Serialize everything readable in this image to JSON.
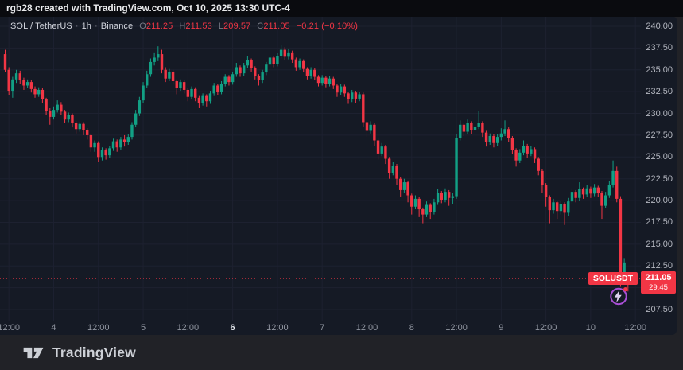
{
  "attribution": {
    "text": "rgb28 created with TradingView.com, Oct 10, 2025 13:30 UTC-4"
  },
  "legend": {
    "symbol": "SOL / TetherUS",
    "separator": "·",
    "interval": "1h",
    "exchange": "Binance",
    "change": "−0.21 (−0.10%)"
  },
  "footer": {
    "brand": "TradingView"
  },
  "colors": {
    "up": "#12a085",
    "down": "#f23645",
    "grid": "#1d2130",
    "pane_bg": "#151a25",
    "axis_text": "#b4b7c0",
    "dim_text": "#9196a1",
    "boost_ring": "#a94fd6"
  },
  "chart_data": {
    "type": "candlestick",
    "title": "SOL / TetherUS · 1h · Binance",
    "symbol": "SOLUSDT",
    "interval": "1h",
    "exchange": "Binance",
    "ohlc_legend": [
      {
        "label": "O",
        "value": "211.25"
      },
      {
        "label": "H",
        "value": "211.53"
      },
      {
        "label": "L",
        "value": "209.57"
      },
      {
        "label": "C",
        "value": "211.05"
      }
    ],
    "change": "−0.21 (−0.10%)",
    "y_axis": {
      "max": 240.0,
      "min": 207.5,
      "step": 2.5,
      "labels": [
        "240.00",
        "237.50",
        "235.00",
        "232.50",
        "230.00",
        "227.50",
        "225.00",
        "222.50",
        "220.00",
        "217.50",
        "215.00",
        "212.50",
        "207.50"
      ]
    },
    "x_ticks": [
      {
        "index": 1,
        "label": "12:00"
      },
      {
        "index": 13,
        "label": "4"
      },
      {
        "index": 25,
        "label": "12:00"
      },
      {
        "index": 37,
        "label": "5"
      },
      {
        "index": 49,
        "label": "12:00"
      },
      {
        "index": 61,
        "label": "6",
        "bold": true
      },
      {
        "index": 73,
        "label": "12:00"
      },
      {
        "index": 85,
        "label": "7"
      },
      {
        "index": 97,
        "label": "12:00"
      },
      {
        "index": 109,
        "label": "8"
      },
      {
        "index": 121,
        "label": "12:00"
      },
      {
        "index": 133,
        "label": "9"
      },
      {
        "index": 145,
        "label": "12:00"
      },
      {
        "index": 157,
        "label": "10"
      },
      {
        "index": 169,
        "label": "12:00"
      }
    ],
    "price_line": {
      "price": 211.05,
      "price_label": "211.05",
      "countdown": "29:45",
      "symbol_label": "SOLUSDT"
    },
    "candles": [
      [
        236.8,
        237.3,
        234.7,
        235.0
      ],
      [
        235.0,
        235.3,
        232.1,
        232.6
      ],
      [
        232.6,
        234.2,
        231.8,
        233.9
      ],
      [
        233.9,
        235.0,
        233.5,
        234.6
      ],
      [
        234.6,
        234.9,
        233.4,
        233.8
      ],
      [
        233.8,
        234.1,
        232.7,
        233.2
      ],
      [
        233.2,
        233.9,
        232.9,
        233.6
      ],
      [
        233.6,
        233.8,
        232.4,
        232.8
      ],
      [
        232.8,
        233.1,
        231.8,
        232.2
      ],
      [
        232.2,
        233.0,
        231.9,
        232.7
      ],
      [
        232.7,
        232.9,
        231.2,
        231.6
      ],
      [
        231.6,
        231.8,
        229.8,
        230.3
      ],
      [
        230.3,
        230.6,
        228.7,
        229.6
      ],
      [
        229.6,
        230.8,
        229.3,
        230.4
      ],
      [
        230.4,
        231.5,
        230.1,
        231.0
      ],
      [
        231.0,
        231.3,
        229.8,
        230.2
      ],
      [
        230.2,
        230.4,
        228.9,
        229.3
      ],
      [
        229.3,
        230.1,
        229.0,
        229.8
      ],
      [
        229.8,
        230.0,
        228.4,
        228.9
      ],
      [
        228.9,
        229.1,
        227.7,
        228.2
      ],
      [
        228.2,
        229.0,
        227.9,
        228.8
      ],
      [
        228.8,
        229.0,
        227.5,
        228.1
      ],
      [
        228.1,
        228.3,
        227.0,
        227.5
      ],
      [
        227.5,
        227.7,
        225.6,
        226.1
      ],
      [
        226.1,
        226.9,
        225.6,
        226.6
      ],
      [
        226.6,
        226.8,
        224.4,
        225.0
      ],
      [
        225.0,
        226.1,
        224.6,
        225.8
      ],
      [
        225.8,
        226.0,
        224.7,
        225.2
      ],
      [
        225.2,
        226.3,
        224.9,
        226.0
      ],
      [
        226.0,
        227.1,
        225.7,
        226.8
      ],
      [
        226.8,
        227.0,
        225.6,
        226.1
      ],
      [
        226.1,
        227.3,
        225.8,
        227.0
      ],
      [
        227.0,
        227.5,
        226.2,
        226.7
      ],
      [
        226.7,
        227.6,
        226.4,
        227.3
      ],
      [
        227.3,
        229.0,
        227.0,
        228.7
      ],
      [
        228.7,
        230.4,
        228.4,
        230.0
      ],
      [
        230.0,
        231.9,
        229.7,
        231.5
      ],
      [
        231.5,
        233.6,
        231.2,
        233.2
      ],
      [
        233.2,
        234.9,
        232.9,
        234.5
      ],
      [
        234.5,
        236.3,
        234.2,
        235.9
      ],
      [
        235.9,
        237.0,
        235.5,
        236.4
      ],
      [
        236.4,
        237.7,
        236.0,
        236.8
      ],
      [
        236.8,
        237.3,
        234.6,
        235.0
      ],
      [
        235.0,
        235.3,
        233.6,
        234.0
      ],
      [
        234.0,
        235.1,
        233.7,
        234.8
      ],
      [
        234.8,
        235.0,
        233.3,
        233.7
      ],
      [
        233.7,
        233.9,
        232.2,
        232.9
      ],
      [
        232.9,
        233.9,
        232.6,
        233.6
      ],
      [
        233.6,
        233.8,
        232.3,
        232.7
      ],
      [
        232.7,
        232.9,
        231.4,
        231.9
      ],
      [
        231.9,
        233.1,
        231.6,
        232.8
      ],
      [
        232.8,
        233.0,
        231.4,
        231.8
      ],
      [
        231.8,
        232.0,
        230.6,
        231.2
      ],
      [
        231.2,
        232.3,
        230.9,
        232.0
      ],
      [
        232.0,
        232.2,
        230.8,
        231.4
      ],
      [
        231.4,
        232.6,
        231.1,
        232.3
      ],
      [
        232.3,
        233.5,
        232.0,
        233.2
      ],
      [
        233.2,
        233.4,
        232.1,
        232.5
      ],
      [
        232.5,
        233.7,
        232.2,
        233.4
      ],
      [
        233.4,
        234.5,
        233.1,
        234.2
      ],
      [
        234.2,
        234.4,
        233.2,
        233.6
      ],
      [
        233.6,
        234.8,
        233.3,
        234.5
      ],
      [
        234.5,
        235.8,
        234.2,
        235.3
      ],
      [
        235.3,
        235.5,
        234.2,
        234.6
      ],
      [
        234.6,
        235.8,
        234.3,
        235.5
      ],
      [
        235.5,
        236.6,
        235.2,
        236.1
      ],
      [
        236.1,
        236.3,
        234.8,
        235.2
      ],
      [
        235.2,
        235.4,
        233.9,
        234.3
      ],
      [
        234.3,
        234.5,
        233.2,
        233.8
      ],
      [
        233.8,
        235.0,
        233.5,
        234.7
      ],
      [
        234.7,
        235.9,
        234.4,
        235.6
      ],
      [
        235.6,
        236.7,
        235.3,
        236.4
      ],
      [
        236.4,
        236.6,
        235.3,
        235.7
      ],
      [
        235.7,
        236.9,
        235.4,
        236.6
      ],
      [
        236.6,
        237.9,
        236.3,
        237.3
      ],
      [
        237.3,
        237.6,
        236.1,
        236.5
      ],
      [
        236.5,
        237.4,
        236.2,
        237.0
      ],
      [
        237.0,
        237.2,
        235.8,
        236.2
      ],
      [
        236.2,
        236.4,
        234.9,
        235.3
      ],
      [
        235.3,
        236.3,
        235.0,
        236.0
      ],
      [
        236.0,
        236.2,
        234.7,
        235.1
      ],
      [
        235.1,
        235.3,
        233.9,
        234.3
      ],
      [
        234.3,
        235.3,
        234.0,
        235.0
      ],
      [
        235.0,
        235.2,
        233.8,
        234.2
      ],
      [
        234.2,
        234.4,
        233.1,
        233.5
      ],
      [
        233.5,
        234.4,
        233.2,
        234.1
      ],
      [
        234.1,
        234.3,
        233.0,
        233.4
      ],
      [
        233.4,
        234.3,
        233.1,
        234.0
      ],
      [
        234.0,
        234.2,
        232.8,
        233.2
      ],
      [
        233.2,
        233.4,
        231.9,
        232.4
      ],
      [
        232.4,
        233.4,
        232.1,
        233.1
      ],
      [
        233.1,
        233.3,
        231.9,
        232.3
      ],
      [
        232.3,
        232.5,
        231.1,
        231.6
      ],
      [
        231.6,
        232.7,
        231.3,
        232.4
      ],
      [
        232.4,
        232.6,
        231.2,
        231.7
      ],
      [
        231.7,
        232.5,
        231.4,
        232.2
      ],
      [
        232.2,
        232.4,
        228.5,
        229.0
      ],
      [
        229.0,
        229.2,
        227.3,
        228.0
      ],
      [
        228.0,
        229.1,
        227.7,
        228.7
      ],
      [
        228.7,
        228.9,
        226.3,
        226.9
      ],
      [
        226.9,
        227.1,
        224.7,
        225.4
      ],
      [
        225.4,
        226.6,
        225.1,
        226.2
      ],
      [
        226.2,
        226.4,
        224.2,
        224.8
      ],
      [
        224.8,
        225.0,
        222.5,
        223.2
      ],
      [
        223.2,
        224.4,
        222.9,
        224.0
      ],
      [
        224.0,
        224.2,
        221.8,
        222.5
      ],
      [
        222.5,
        222.7,
        220.4,
        221.2
      ],
      [
        221.2,
        222.5,
        220.9,
        222.1
      ],
      [
        222.1,
        222.3,
        219.8,
        220.6
      ],
      [
        220.6,
        220.8,
        218.4,
        219.3
      ],
      [
        219.3,
        220.6,
        219.0,
        220.2
      ],
      [
        220.2,
        220.4,
        218.1,
        219.0
      ],
      [
        219.0,
        219.2,
        217.4,
        218.4
      ],
      [
        218.4,
        219.9,
        218.1,
        219.5
      ],
      [
        219.5,
        219.7,
        217.9,
        218.7
      ],
      [
        218.7,
        220.2,
        218.4,
        219.8
      ],
      [
        219.8,
        221.3,
        219.5,
        220.9
      ],
      [
        220.9,
        221.1,
        219.7,
        220.1
      ],
      [
        220.1,
        221.4,
        219.8,
        221.0
      ],
      [
        221.0,
        221.2,
        219.4,
        220.3
      ],
      [
        220.3,
        220.9,
        219.6,
        220.5
      ],
      [
        220.5,
        227.6,
        220.2,
        227.2
      ],
      [
        227.2,
        229.2,
        226.9,
        228.7
      ],
      [
        228.7,
        228.9,
        227.4,
        227.9
      ],
      [
        227.9,
        229.3,
        227.6,
        228.9
      ],
      [
        228.9,
        229.1,
        227.6,
        228.1
      ],
      [
        228.1,
        228.9,
        227.7,
        228.5
      ],
      [
        228.5,
        230.3,
        228.2,
        228.9
      ],
      [
        228.9,
        229.1,
        227.3,
        227.8
      ],
      [
        227.8,
        228.0,
        226.2,
        226.7
      ],
      [
        226.7,
        227.7,
        226.4,
        227.4
      ],
      [
        227.4,
        227.6,
        226.1,
        226.6
      ],
      [
        226.6,
        227.6,
        226.3,
        227.3
      ],
      [
        227.3,
        228.3,
        226.9,
        227.7
      ],
      [
        227.7,
        229.2,
        227.4,
        228.2
      ],
      [
        228.2,
        228.4,
        226.7,
        227.2
      ],
      [
        227.2,
        227.4,
        225.3,
        225.8
      ],
      [
        225.8,
        226.0,
        223.9,
        224.6
      ],
      [
        224.6,
        225.9,
        224.3,
        225.5
      ],
      [
        225.5,
        226.9,
        225.2,
        226.3
      ],
      [
        226.3,
        226.5,
        224.9,
        225.4
      ],
      [
        225.4,
        226.3,
        225.1,
        225.9
      ],
      [
        225.9,
        226.1,
        224.3,
        224.8
      ],
      [
        224.8,
        225.0,
        222.9,
        223.4
      ],
      [
        223.4,
        223.6,
        220.9,
        221.8
      ],
      [
        221.8,
        222.0,
        219.3,
        220.4
      ],
      [
        220.4,
        220.6,
        217.4,
        218.9
      ],
      [
        218.9,
        220.2,
        218.5,
        219.8
      ],
      [
        219.8,
        220.0,
        217.9,
        218.8
      ],
      [
        218.8,
        220.0,
        218.4,
        219.6
      ],
      [
        219.6,
        219.8,
        217.2,
        218.6
      ],
      [
        218.6,
        220.3,
        218.2,
        219.9
      ],
      [
        219.9,
        221.4,
        219.6,
        221.0
      ],
      [
        221.0,
        221.2,
        219.8,
        220.3
      ],
      [
        220.3,
        222.1,
        220.0,
        221.3
      ],
      [
        221.3,
        221.5,
        220.2,
        220.7
      ],
      [
        220.7,
        221.8,
        220.4,
        221.4
      ],
      [
        221.4,
        221.6,
        220.3,
        220.8
      ],
      [
        220.8,
        221.9,
        220.5,
        221.5
      ],
      [
        221.5,
        221.7,
        220.4,
        220.9
      ],
      [
        220.9,
        221.1,
        217.9,
        219.4
      ],
      [
        219.4,
        221.0,
        219.1,
        220.6
      ],
      [
        220.6,
        222.2,
        220.3,
        221.8
      ],
      [
        221.8,
        224.6,
        221.5,
        223.4
      ],
      [
        223.4,
        223.9,
        219.8,
        220.2
      ],
      [
        220.2,
        220.5,
        210.1,
        211.6
      ],
      [
        211.6,
        213.4,
        211.0,
        212.9
      ],
      [
        211.25,
        211.53,
        209.57,
        211.05
      ]
    ]
  }
}
